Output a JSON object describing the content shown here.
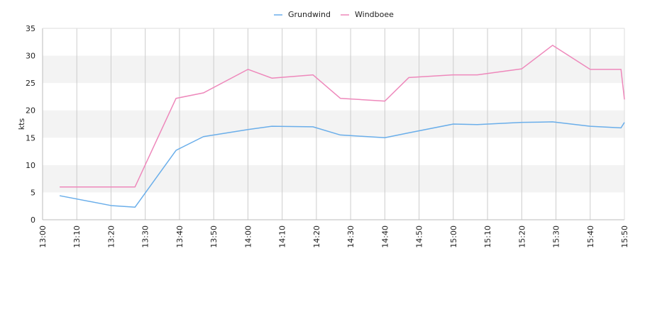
{
  "chart_data": {
    "type": "line",
    "title": "",
    "xlabel": "",
    "ylabel": "kts",
    "ylim": [
      0,
      35
    ],
    "yticks": [
      0,
      5,
      10,
      15,
      20,
      25,
      30,
      35
    ],
    "xlim": [
      "13:00",
      "15:50"
    ],
    "xticks": [
      "13:00",
      "13:10",
      "13:20",
      "13:30",
      "13:40",
      "13:50",
      "14:00",
      "14:10",
      "14:20",
      "14:30",
      "14:40",
      "14:50",
      "15:00",
      "15:10",
      "15:20",
      "15:30",
      "15:40",
      "15:50"
    ],
    "grid": "vertical lines at ticks, alternating horizontal bands",
    "legend_position": "top-center",
    "x": [
      "13:05",
      "13:20",
      "13:27",
      "13:39",
      "13:47",
      "14:00",
      "14:07",
      "14:19",
      "14:27",
      "14:40",
      "14:47",
      "15:00",
      "15:07",
      "15:20",
      "15:29",
      "15:40",
      "15:49",
      "15:50"
    ],
    "series": [
      {
        "name": "Grundwind",
        "color": "#6aaeea",
        "values": [
          4.4,
          2.6,
          2.3,
          12.7,
          15.2,
          16.5,
          17.1,
          17.0,
          15.5,
          15.0,
          15.9,
          17.5,
          17.4,
          17.8,
          17.9,
          17.1,
          16.8,
          17.8
        ]
      },
      {
        "name": "Windboee",
        "color": "#ee88bb",
        "values": [
          6.0,
          6.0,
          6.0,
          22.2,
          23.2,
          27.5,
          25.9,
          26.5,
          22.2,
          21.7,
          26.0,
          26.5,
          26.5,
          27.6,
          31.9,
          27.5,
          27.5,
          22.0
        ]
      }
    ]
  }
}
